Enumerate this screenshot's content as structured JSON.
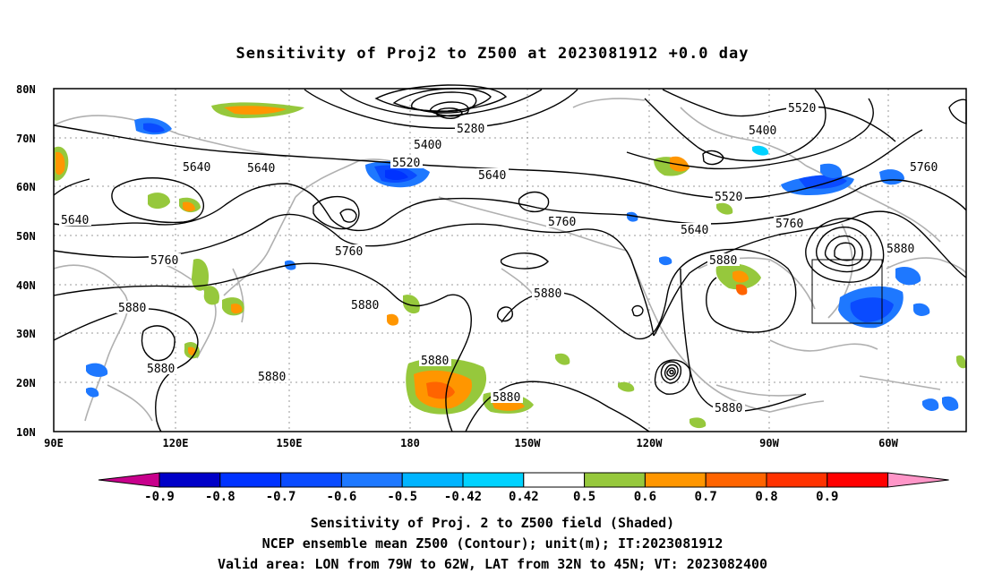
{
  "title": "Sensitivity of Proj2 to Z500 at 2023081912 +0.0 day",
  "map": {
    "lat_labels": [
      "80N",
      "70N",
      "60N",
      "50N",
      "40N",
      "30N",
      "20N",
      "10N"
    ],
    "lon_labels": [
      "90E",
      "120E",
      "150E",
      "180",
      "150W",
      "120W",
      "90W",
      "60W"
    ],
    "contour_labels": [
      "5280",
      "5400",
      "5520",
      "5640",
      "5760",
      "5880"
    ],
    "valid_area_box": {
      "lon_range": [
        "79W",
        "62W"
      ],
      "lat_range": [
        "32N",
        "45N"
      ]
    }
  },
  "colorbar": {
    "labels": [
      "-0.9",
      "-0.8",
      "-0.7",
      "-0.6",
      "-0.5",
      "-0.42",
      "0.42",
      "0.5",
      "0.6",
      "0.7",
      "0.8",
      "0.9"
    ],
    "colors": [
      "#c8008c",
      "#0000c8",
      "#0032ff",
      "#0a4bff",
      "#1e78ff",
      "#00b4ff",
      "#00d2ff",
      "#ffffff",
      "#96c83c",
      "#ff9600",
      "#ff6400",
      "#ff3200",
      "#ff0000",
      "#ff96c8"
    ]
  },
  "caption": {
    "line1": "Sensitivity of Proj. 2 to Z500 field (Shaded)",
    "line2": "NCEP ensemble mean Z500 (Contour); unit(m); IT:2023081912",
    "line3": "Valid area: LON from 79W to 62W, LAT from 32N to 45N; VT: 2023082400"
  }
}
